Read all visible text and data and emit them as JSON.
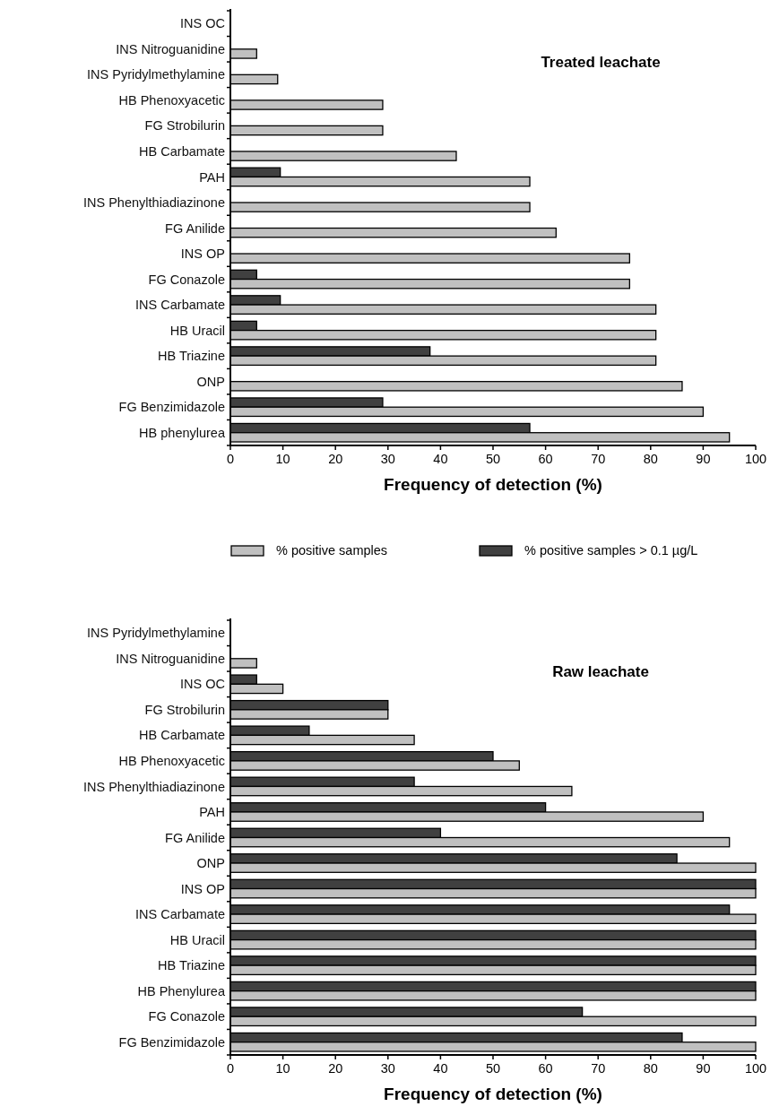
{
  "chart_data": [
    {
      "type": "bar",
      "orientation": "horizontal",
      "title": "Treated leachate",
      "xlabel": "Frequency of detection (%)",
      "categories": [
        "INS OC",
        "INS Nitroguanidine",
        "INS Pyridylmethylamine",
        "HB Phenoxyacetic",
        "FG Strobilurin",
        "HB Carbamate",
        "PAH",
        "INS Phenylthiadiazinone",
        "FG Anilide",
        "INS OP",
        "FG Conazole",
        "INS Carbamate",
        "HB Uracil",
        "HB Triazine",
        "ONP",
        "FG Benzimidazole",
        "HB phenylurea"
      ],
      "series": [
        {
          "name": "% positive samples > 0.1 µg/L",
          "color": "#404040",
          "values": [
            0,
            0,
            0,
            0,
            0,
            0,
            9.5,
            0,
            0,
            0,
            5,
            9.5,
            5,
            38,
            0,
            29,
            57
          ]
        },
        {
          "name": "% positive samples",
          "color": "#c0c0c0",
          "values": [
            0,
            5,
            9,
            29,
            29,
            43,
            57,
            57,
            62,
            76,
            76,
            81,
            81,
            81,
            86,
            90,
            95
          ]
        }
      ],
      "xlim": [
        0,
        100
      ],
      "xticks": [
        0,
        10,
        20,
        30,
        40,
        50,
        60,
        70,
        80,
        90,
        100
      ],
      "legend": "bottom"
    },
    {
      "type": "bar",
      "orientation": "horizontal",
      "title": "Raw leachate",
      "xlabel": "Frequency of detection (%)",
      "categories": [
        "INS Pyridylmethylamine",
        "INS Nitroguanidine",
        "INS OC",
        "FG Strobilurin",
        "HB Carbamate",
        "HB Phenoxyacetic",
        "INS Phenylthiadiazinone",
        "PAH",
        "FG Anilide",
        "ONP",
        "INS OP",
        "INS Carbamate",
        "HB Uracil",
        "HB Triazine",
        "HB Phenylurea",
        "FG Conazole",
        "FG Benzimidazole"
      ],
      "series": [
        {
          "color": "#404040",
          "values": [
            0,
            0,
            5,
            30,
            15,
            50,
            35,
            60,
            40,
            85,
            100,
            95,
            100,
            100,
            100,
            67,
            86
          ]
        },
        {
          "color": "#c0c0c0",
          "values": [
            0,
            5,
            10,
            30,
            35,
            55,
            65,
            90,
            95,
            100,
            100,
            100,
            100,
            100,
            100,
            100,
            100
          ]
        }
      ],
      "xlim": [
        0,
        100
      ],
      "xticks": [
        0,
        10,
        20,
        30,
        40,
        50,
        60,
        70,
        80,
        90,
        100
      ]
    }
  ]
}
